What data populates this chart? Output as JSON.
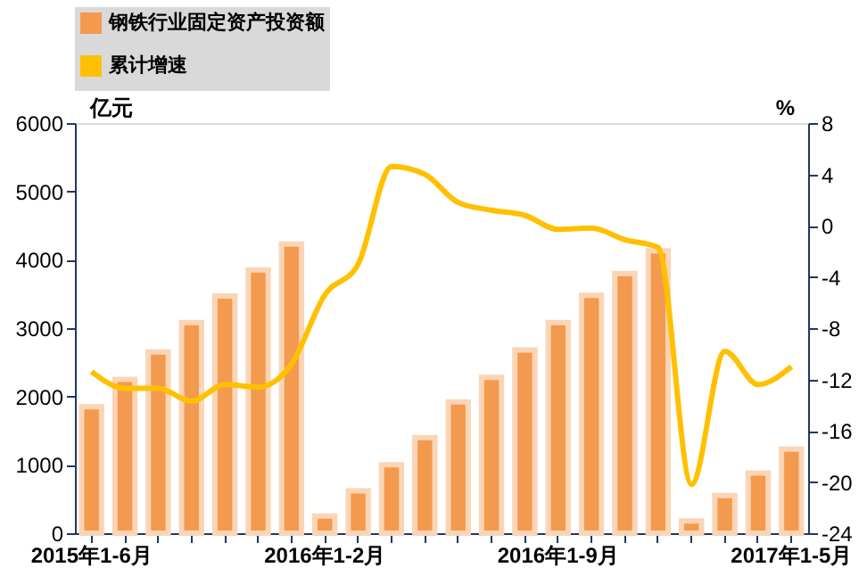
{
  "chart_data": {
    "type": "bar",
    "ylabel": "亿元",
    "y2label": "%",
    "categories": [
      "2015年1-6月",
      null,
      null,
      null,
      null,
      null,
      null,
      "2016年1-2月",
      null,
      null,
      null,
      null,
      null,
      null,
      "2016年1-9月",
      null,
      null,
      null,
      null,
      null,
      null,
      "2017年1-5月"
    ],
    "series": [
      {
        "name": "钢铁行业固定资产投资额",
        "color": "#f39a4f",
        "values": [
          1850,
          2250,
          2650,
          3080,
          3470,
          3850,
          4230,
          250,
          620,
          1000,
          1400,
          1920,
          2280,
          2680,
          3080,
          3480,
          3800,
          4130,
          180,
          550,
          880,
          1230
        ]
      },
      {
        "name": "累计增速",
        "type": "line",
        "axis": "y2",
        "color": "#ffc000",
        "values": [
          -11.4,
          -12.7,
          -12.7,
          -13.7,
          -12.4,
          -12.6,
          -10.8,
          -5.4,
          -3.0,
          4.6,
          4.0,
          1.8,
          1.2,
          0.8,
          -0.3,
          -0.2,
          -1.1,
          -1.7,
          -20.2,
          -9.8,
          -12.4,
          -11.0
        ]
      }
    ],
    "ylim": [
      0,
      6000
    ],
    "yticks": [
      0,
      1000,
      2000,
      3000,
      4000,
      5000,
      6000
    ],
    "y2lim": [
      -24,
      8
    ],
    "y2ticks": [
      -24,
      -20,
      -16,
      -12,
      -8,
      -4,
      0,
      4,
      8
    ],
    "grid": false,
    "legend": "top"
  }
}
